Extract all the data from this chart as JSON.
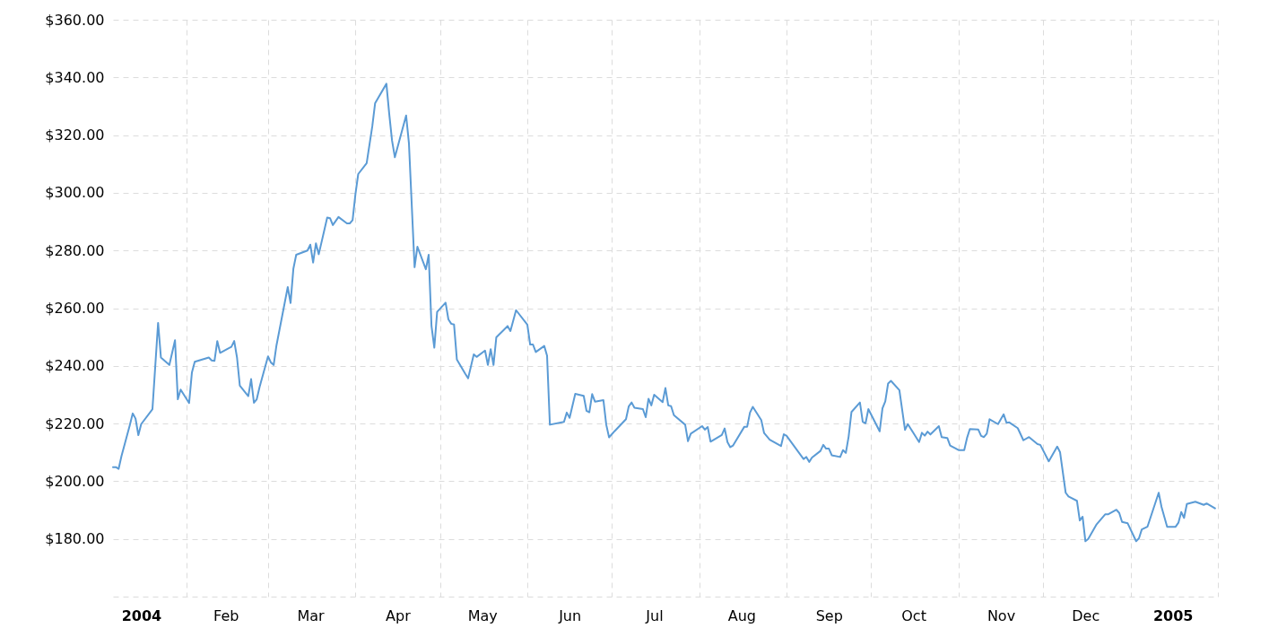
{
  "chart_data": {
    "type": "line",
    "color": "#5b9bd5",
    "grid": true,
    "xlim": [
      "2004-01-06",
      "2005-02-01"
    ],
    "ylim": [
      160,
      360
    ],
    "xticks": [
      {
        "value": "2004-01-16",
        "label": "2004"
      },
      {
        "value": "2004-02-01",
        "label": null
      },
      {
        "value": "2004-02-15",
        "label": "Feb"
      },
      {
        "value": "2004-03-01",
        "label": null
      },
      {
        "value": "2004-03-16",
        "label": "Mar"
      },
      {
        "value": "2004-04-01",
        "label": null
      },
      {
        "value": "2004-04-16",
        "label": "Apr"
      },
      {
        "value": "2004-05-01",
        "label": null
      },
      {
        "value": "2004-05-16",
        "label": "May"
      },
      {
        "value": "2004-06-01",
        "label": null
      },
      {
        "value": "2004-06-16",
        "label": "Jun"
      },
      {
        "value": "2004-07-01",
        "label": null
      },
      {
        "value": "2004-07-16",
        "label": "Jul"
      },
      {
        "value": "2004-08-01",
        "label": null
      },
      {
        "value": "2004-08-16",
        "label": "Aug"
      },
      {
        "value": "2004-09-01",
        "label": null
      },
      {
        "value": "2004-09-16",
        "label": "Sep"
      },
      {
        "value": "2004-10-01",
        "label": null
      },
      {
        "value": "2004-10-16",
        "label": "Oct"
      },
      {
        "value": "2004-11-01",
        "label": null
      },
      {
        "value": "2004-11-16",
        "label": "Nov"
      },
      {
        "value": "2004-12-01",
        "label": null
      },
      {
        "value": "2004-12-16",
        "label": "Dec"
      },
      {
        "value": "2005-01-01",
        "label": null
      },
      {
        "value": "2005-01-16",
        "label": "2005"
      },
      {
        "value": "2005-02-01",
        "label": null
      }
    ],
    "yticks": [
      {
        "value": 160,
        "label": null
      },
      {
        "value": 180,
        "label": "$180.00"
      },
      {
        "value": 200,
        "label": "$200.00"
      },
      {
        "value": 220,
        "label": "$220.00"
      },
      {
        "value": 240,
        "label": "$240.00"
      },
      {
        "value": 260,
        "label": "$260.00"
      },
      {
        "value": 280,
        "label": "$280.00"
      },
      {
        "value": 300,
        "label": "$300.00"
      },
      {
        "value": 320,
        "label": "$320.00"
      },
      {
        "value": 340,
        "label": "$340.00"
      },
      {
        "value": 360,
        "label": "$360.00"
      }
    ],
    "x": [
      "2004-01-06",
      "2004-01-07",
      "2004-01-08",
      "2004-01-09",
      "2004-01-12",
      "2004-01-13",
      "2004-01-14",
      "2004-01-15",
      "2004-01-16",
      "2004-01-20",
      "2004-01-22",
      "2004-01-23",
      "2004-01-26",
      "2004-01-28",
      "2004-01-29",
      "2004-01-30",
      "2004-02-02",
      "2004-02-03",
      "2004-02-04",
      "2004-02-09",
      "2004-02-10",
      "2004-02-11",
      "2004-02-12",
      "2004-02-13",
      "2004-02-17",
      "2004-02-18",
      "2004-02-19",
      "2004-02-20",
      "2004-02-23",
      "2004-02-24",
      "2004-02-25",
      "2004-02-26",
      "2004-02-27",
      "2004-03-01",
      "2004-03-02",
      "2004-03-03",
      "2004-03-04",
      "2004-03-08",
      "2004-03-09",
      "2004-03-10",
      "2004-03-11",
      "2004-03-15",
      "2004-03-16",
      "2004-03-17",
      "2004-03-18",
      "2004-03-19",
      "2004-03-22",
      "2004-03-23",
      "2004-03-24",
      "2004-03-26",
      "2004-03-29",
      "2004-03-30",
      "2004-03-31",
      "2004-04-01",
      "2004-04-02",
      "2004-04-05",
      "2004-04-07",
      "2004-04-08",
      "2004-04-12",
      "2004-04-13",
      "2004-04-14",
      "2004-04-15",
      "2004-04-19",
      "2004-04-20",
      "2004-04-22",
      "2004-04-23",
      "2004-04-26",
      "2004-04-27",
      "2004-04-28",
      "2004-04-29",
      "2004-04-30",
      "2004-05-03",
      "2004-05-04",
      "2004-05-05",
      "2004-05-06",
      "2004-05-07",
      "2004-05-10",
      "2004-05-11",
      "2004-05-13",
      "2004-05-14",
      "2004-05-17",
      "2004-05-18",
      "2004-05-19",
      "2004-05-20",
      "2004-05-21",
      "2004-05-25",
      "2004-05-26",
      "2004-05-28",
      "2004-06-01",
      "2004-06-02",
      "2004-06-03",
      "2004-06-04",
      "2004-06-07",
      "2004-06-08",
      "2004-06-09",
      "2004-06-14",
      "2004-06-15",
      "2004-06-16",
      "2004-06-18",
      "2004-06-21",
      "2004-06-22",
      "2004-06-23",
      "2004-06-24",
      "2004-06-25",
      "2004-06-28",
      "2004-06-29",
      "2004-06-30",
      "2004-07-02",
      "2004-07-06",
      "2004-07-07",
      "2004-07-08",
      "2004-07-09",
      "2004-07-12",
      "2004-07-13",
      "2004-07-14",
      "2004-07-15",
      "2004-07-16",
      "2004-07-19",
      "2004-07-20",
      "2004-07-21",
      "2004-07-22",
      "2004-07-23",
      "2004-07-27",
      "2004-07-28",
      "2004-07-29",
      "2004-08-02",
      "2004-08-03",
      "2004-08-04",
      "2004-08-05",
      "2004-08-09",
      "2004-08-10",
      "2004-08-11",
      "2004-08-12",
      "2004-08-13",
      "2004-08-17",
      "2004-08-18",
      "2004-08-19",
      "2004-08-20",
      "2004-08-23",
      "2004-08-24",
      "2004-08-26",
      "2004-08-30",
      "2004-08-31",
      "2004-09-01",
      "2004-09-07",
      "2004-09-08",
      "2004-09-09",
      "2004-09-10",
      "2004-09-13",
      "2004-09-14",
      "2004-09-15",
      "2004-09-16",
      "2004-09-17",
      "2004-09-20",
      "2004-09-21",
      "2004-09-22",
      "2004-09-23",
      "2004-09-24",
      "2004-09-27",
      "2004-09-28",
      "2004-09-29",
      "2004-09-30",
      "2004-10-04",
      "2004-10-05",
      "2004-10-06",
      "2004-10-07",
      "2004-10-08",
      "2004-10-11",
      "2004-10-13",
      "2004-10-14",
      "2004-10-18",
      "2004-10-19",
      "2004-10-20",
      "2004-10-21",
      "2004-10-22",
      "2004-10-25",
      "2004-10-26",
      "2004-10-28",
      "2004-10-29",
      "2004-11-01",
      "2004-11-03",
      "2004-11-04",
      "2004-11-05",
      "2004-11-08",
      "2004-11-09",
      "2004-11-10",
      "2004-11-11",
      "2004-11-12",
      "2004-11-15",
      "2004-11-17",
      "2004-11-18",
      "2004-11-19",
      "2004-11-22",
      "2004-11-24",
      "2004-11-26",
      "2004-11-29",
      "2004-11-30",
      "2004-12-03",
      "2004-12-06",
      "2004-12-07",
      "2004-12-09",
      "2004-12-10",
      "2004-12-13",
      "2004-12-14",
      "2004-12-15",
      "2004-12-16",
      "2004-12-17",
      "2004-12-20",
      "2004-12-23",
      "2004-12-24",
      "2004-12-27",
      "2004-12-28",
      "2004-12-29",
      "2004-12-31",
      "2005-01-03",
      "2005-01-04",
      "2005-01-05",
      "2005-01-07",
      "2005-01-11",
      "2005-01-12",
      "2005-01-14",
      "2005-01-17",
      "2005-01-18",
      "2005-01-19",
      "2005-01-20",
      "2005-01-21",
      "2005-01-24",
      "2005-01-27",
      "2005-01-28",
      "2005-01-31"
    ],
    "values": [
      204.9,
      204.9,
      204.3,
      208.7,
      219.6,
      223.5,
      221.7,
      216.0,
      219.8,
      225.0,
      254.9,
      242.9,
      240.3,
      248.9,
      228.4,
      231.8,
      227.1,
      237.7,
      241.4,
      242.9,
      241.9,
      241.7,
      248.6,
      244.5,
      246.6,
      248.6,
      242.9,
      233.1,
      229.5,
      235.4,
      227.2,
      228.4,
      232.6,
      243.3,
      241.2,
      240.3,
      247.1,
      267.3,
      261.8,
      273.7,
      278.5,
      280.0,
      282.0,
      275.8,
      282.5,
      278.7,
      291.4,
      291.2,
      288.8,
      291.6,
      289.4,
      289.4,
      290.5,
      299.4,
      306.5,
      310.3,
      323.1,
      331.1,
      337.8,
      327.4,
      318.1,
      312.3,
      326.8,
      317.1,
      274.2,
      281.3,
      273.5,
      278.5,
      253.8,
      246.3,
      258.7,
      261.9,
      256.1,
      254.6,
      254.3,
      242.2,
      237.2,
      235.7,
      244.0,
      243.1,
      245.3,
      240.3,
      245.8,
      240.3,
      249.9,
      253.8,
      252.1,
      259.3,
      254.3,
      247.4,
      247.4,
      244.8,
      246.9,
      243.5,
      219.6,
      220.6,
      223.8,
      222.0,
      230.3,
      229.6,
      224.4,
      223.9,
      230.2,
      227.6,
      228.1,
      219.6,
      215.2,
      217.4,
      221.5,
      226.0,
      227.3,
      225.5,
      225.0,
      222.2,
      228.6,
      226.3,
      230.0,
      227.4,
      232.3,
      226.3,
      226.0,
      222.9,
      219.6,
      213.9,
      216.5,
      219.1,
      217.9,
      218.8,
      213.7,
      216.0,
      218.3,
      213.6,
      211.8,
      212.4,
      218.9,
      218.9,
      223.8,
      225.8,
      221.2,
      216.7,
      214.4,
      212.2,
      216.3,
      215.7,
      207.7,
      208.4,
      206.7,
      208.2,
      210.5,
      212.6,
      211.3,
      211.3,
      209.0,
      208.4,
      210.8,
      209.8,
      215.5,
      224.0,
      227.3,
      220.6,
      220.1,
      225.0,
      217.3,
      225.3,
      227.7,
      233.9,
      234.8,
      231.6,
      217.8,
      219.8,
      213.6,
      216.8,
      215.8,
      217.2,
      216.2,
      219.1,
      215.3,
      215.0,
      212.4,
      210.8,
      210.8,
      215.0,
      218.1,
      217.9,
      215.7,
      215.3,
      216.5,
      221.5,
      219.8,
      223.2,
      220.3,
      220.4,
      218.4,
      214.2,
      215.3,
      212.9,
      212.6,
      206.9,
      212.0,
      210.1,
      196.0,
      194.7,
      193.2,
      186.4,
      187.7,
      179.2,
      180.0,
      185.1,
      188.5,
      188.5,
      190.1,
      189.0,
      185.9,
      185.4,
      179.2,
      180.2,
      183.3,
      184.2,
      196.0,
      191.1,
      184.2,
      184.2,
      185.6,
      189.3,
      187.3,
      192.1,
      192.9,
      191.8,
      192.3,
      190.6
    ]
  }
}
